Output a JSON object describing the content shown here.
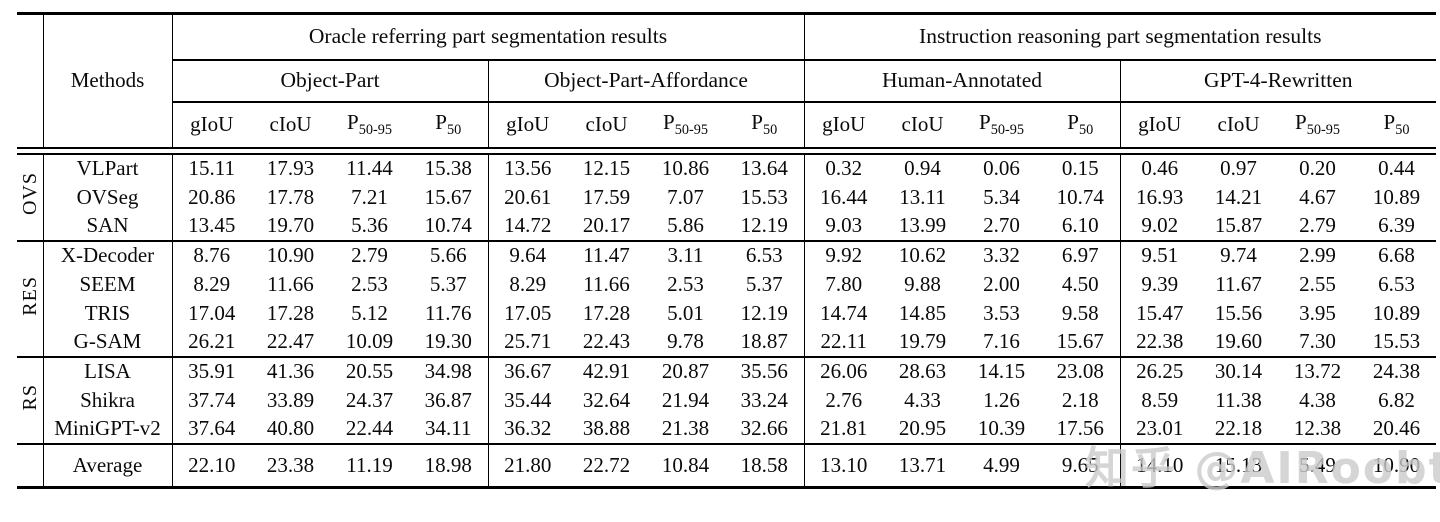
{
  "watermark": "知乎 @AIRoobt",
  "table": {
    "header": {
      "methods_label": "Methods",
      "top_groups": [
        "Oracle referring part segmentation results",
        "Instruction reasoning part segmentation results"
      ],
      "sub_groups": [
        "Object-Part",
        "Object-Part-Affordance",
        "Human-Annotated",
        "GPT-4-Rewritten"
      ],
      "metrics": [
        {
          "base": "gIoU",
          "sub": ""
        },
        {
          "base": "cIoU",
          "sub": ""
        },
        {
          "base": "P",
          "sub": "50-95"
        },
        {
          "base": "P",
          "sub": "50"
        }
      ]
    },
    "groups": [
      {
        "label": "OVS",
        "rows": [
          {
            "method": "VLPart",
            "values": [
              "15.11",
              "17.93",
              "11.44",
              "15.38",
              "13.56",
              "12.15",
              "10.86",
              "13.64",
              "0.32",
              "0.94",
              "0.06",
              "0.15",
              "0.46",
              "0.97",
              "0.20",
              "0.44"
            ]
          },
          {
            "method": "OVSeg",
            "values": [
              "20.86",
              "17.78",
              "7.21",
              "15.67",
              "20.61",
              "17.59",
              "7.07",
              "15.53",
              "16.44",
              "13.11",
              "5.34",
              "10.74",
              "16.93",
              "14.21",
              "4.67",
              "10.89"
            ]
          },
          {
            "method": "SAN",
            "values": [
              "13.45",
              "19.70",
              "5.36",
              "10.74",
              "14.72",
              "20.17",
              "5.86",
              "12.19",
              "9.03",
              "13.99",
              "2.70",
              "6.10",
              "9.02",
              "15.87",
              "2.79",
              "6.39"
            ]
          }
        ]
      },
      {
        "label": "RES",
        "rows": [
          {
            "method": "X-Decoder",
            "values": [
              "8.76",
              "10.90",
              "2.79",
              "5.66",
              "9.64",
              "11.47",
              "3.11",
              "6.53",
              "9.92",
              "10.62",
              "3.32",
              "6.97",
              "9.51",
              "9.74",
              "2.99",
              "6.68"
            ]
          },
          {
            "method": "SEEM",
            "values": [
              "8.29",
              "11.66",
              "2.53",
              "5.37",
              "8.29",
              "11.66",
              "2.53",
              "5.37",
              "7.80",
              "9.88",
              "2.00",
              "4.50",
              "9.39",
              "11.67",
              "2.55",
              "6.53"
            ]
          },
          {
            "method": "TRIS",
            "values": [
              "17.04",
              "17.28",
              "5.12",
              "11.76",
              "17.05",
              "17.28",
              "5.01",
              "12.19",
              "14.74",
              "14.85",
              "3.53",
              "9.58",
              "15.47",
              "15.56",
              "3.95",
              "10.89"
            ]
          },
          {
            "method": "G-SAM",
            "values": [
              "26.21",
              "22.47",
              "10.09",
              "19.30",
              "25.71",
              "22.43",
              "9.78",
              "18.87",
              "22.11",
              "19.79",
              "7.16",
              "15.67",
              "22.38",
              "19.60",
              "7.30",
              "15.53"
            ]
          }
        ]
      },
      {
        "label": "RS",
        "rows": [
          {
            "method": "LISA",
            "values": [
              "35.91",
              "41.36",
              "20.55",
              "34.98",
              "36.67",
              "42.91",
              "20.87",
              "35.56",
              "26.06",
              "28.63",
              "14.15",
              "23.08",
              "26.25",
              "30.14",
              "13.72",
              "24.38"
            ]
          },
          {
            "method": "Shikra",
            "values": [
              "37.74",
              "33.89",
              "24.37",
              "36.87",
              "35.44",
              "32.64",
              "21.94",
              "33.24",
              "2.76",
              "4.33",
              "1.26",
              "2.18",
              "8.59",
              "11.38",
              "4.38",
              "6.82"
            ]
          },
          {
            "method": "MiniGPT-v2",
            "values": [
              "37.64",
              "40.80",
              "22.44",
              "34.11",
              "36.32",
              "38.88",
              "21.38",
              "32.66",
              "21.81",
              "20.95",
              "10.39",
              "17.56",
              "23.01",
              "22.18",
              "12.38",
              "20.46"
            ]
          }
        ]
      },
      {
        "label": "",
        "rows": [
          {
            "method": "Average",
            "values": [
              "22.10",
              "23.38",
              "11.19",
              "18.98",
              "21.80",
              "22.72",
              "10.84",
              "18.58",
              "13.10",
              "13.71",
              "4.99",
              "9.65",
              "14.10",
              "15.13",
              "5.49",
              "10.90"
            ]
          }
        ]
      }
    ]
  }
}
